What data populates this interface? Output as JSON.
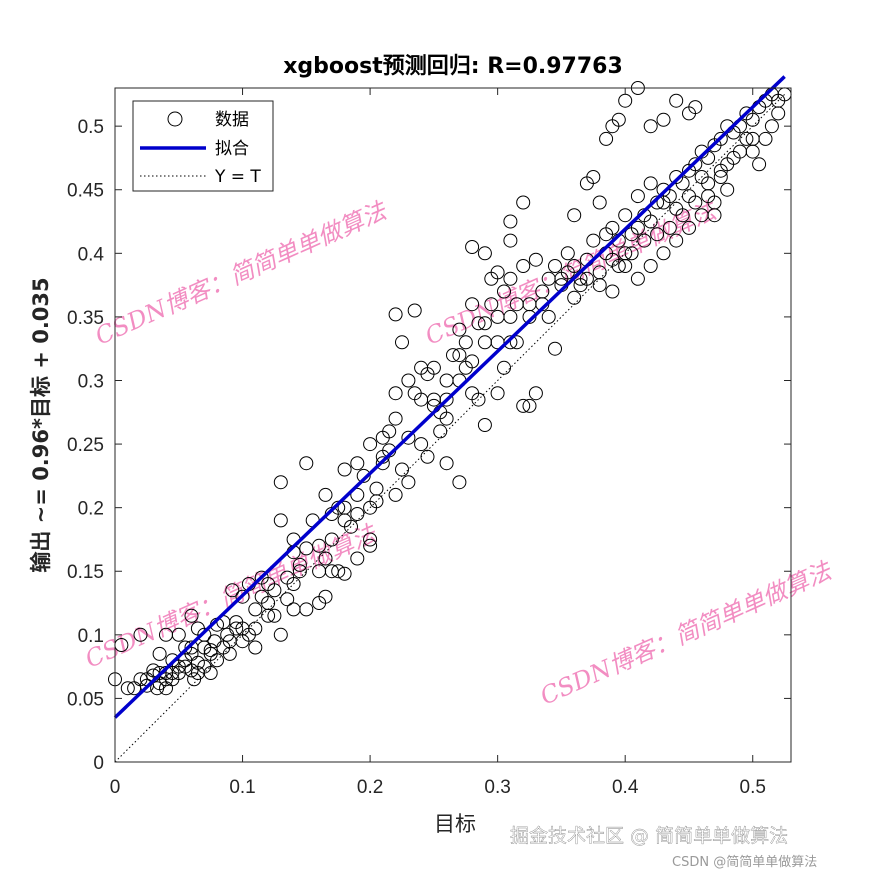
{
  "chart_data": {
    "type": "scatter",
    "title": "xgboost预测回归: R=0.97763",
    "xlabel": "目标",
    "ylabel": "输出 ~= 0.96*目标 + 0.035",
    "xlim": [
      0,
      0.53
    ],
    "ylim": [
      0,
      0.53
    ],
    "xticks": [
      "0",
      "0.1",
      "0.2",
      "0.3",
      "0.4",
      "0.5"
    ],
    "yticks": [
      "0",
      "0.05",
      "0.1",
      "0.15",
      "0.2",
      "0.25",
      "0.3",
      "0.35",
      "0.4",
      "0.45",
      "0.5"
    ],
    "grid": false,
    "legend": {
      "placement": "top-left",
      "entries": [
        {
          "label": "数据",
          "marker": "circle",
          "color": "#000000"
        },
        {
          "label": "拟合",
          "marker": "line",
          "color": "#0000cc"
        },
        {
          "label": "Y = T",
          "marker": "dotted",
          "color": "#000000"
        }
      ]
    },
    "fit": {
      "slope": 0.96,
      "intercept": 0.035,
      "color": "#0000cc"
    },
    "identity_line": {
      "style": "dotted",
      "color": "#000000"
    },
    "series": [
      {
        "label": "数据",
        "points": [
          [
            0.005,
            0.092
          ],
          [
            0.0,
            0.065
          ],
          [
            0.01,
            0.058
          ],
          [
            0.02,
            0.065
          ],
          [
            0.025,
            0.06
          ],
          [
            0.03,
            0.068
          ],
          [
            0.033,
            0.058
          ],
          [
            0.035,
            0.062
          ],
          [
            0.04,
            0.07
          ],
          [
            0.04,
            0.058
          ],
          [
            0.045,
            0.065
          ],
          [
            0.05,
            0.07
          ],
          [
            0.05,
            0.075
          ],
          [
            0.055,
            0.08
          ],
          [
            0.06,
            0.072
          ],
          [
            0.06,
            0.085
          ],
          [
            0.062,
            0.065
          ],
          [
            0.065,
            0.078
          ],
          [
            0.07,
            0.09
          ],
          [
            0.07,
            0.1
          ],
          [
            0.075,
            0.085
          ],
          [
            0.078,
            0.095
          ],
          [
            0.08,
            0.108
          ],
          [
            0.085,
            0.09
          ],
          [
            0.088,
            0.1
          ],
          [
            0.09,
            0.085
          ],
          [
            0.092,
            0.135
          ],
          [
            0.095,
            0.11
          ],
          [
            0.1,
            0.105
          ],
          [
            0.1,
            0.13
          ],
          [
            0.105,
            0.14
          ],
          [
            0.11,
            0.12
          ],
          [
            0.115,
            0.145
          ],
          [
            0.12,
            0.14
          ],
          [
            0.125,
            0.115
          ],
          [
            0.13,
            0.1
          ],
          [
            0.135,
            0.128
          ],
          [
            0.14,
            0.12
          ],
          [
            0.14,
            0.175
          ],
          [
            0.145,
            0.15
          ],
          [
            0.15,
            0.168
          ],
          [
            0.155,
            0.19
          ],
          [
            0.16,
            0.15
          ],
          [
            0.165,
            0.13
          ],
          [
            0.17,
            0.175
          ],
          [
            0.175,
            0.2
          ],
          [
            0.18,
            0.148
          ],
          [
            0.185,
            0.185
          ],
          [
            0.19,
            0.21
          ],
          [
            0.195,
            0.225
          ],
          [
            0.2,
            0.2
          ],
          [
            0.2,
            0.17
          ],
          [
            0.205,
            0.215
          ],
          [
            0.21,
            0.235
          ],
          [
            0.215,
            0.245
          ],
          [
            0.22,
            0.27
          ],
          [
            0.225,
            0.23
          ],
          [
            0.23,
            0.255
          ],
          [
            0.235,
            0.29
          ],
          [
            0.24,
            0.285
          ],
          [
            0.245,
            0.305
          ],
          [
            0.25,
            0.31
          ],
          [
            0.255,
            0.275
          ],
          [
            0.26,
            0.3
          ],
          [
            0.265,
            0.32
          ],
          [
            0.27,
            0.34
          ],
          [
            0.275,
            0.31
          ],
          [
            0.28,
            0.36
          ],
          [
            0.285,
            0.345
          ],
          [
            0.29,
            0.33
          ],
          [
            0.295,
            0.36
          ],
          [
            0.3,
            0.35
          ],
          [
            0.305,
            0.37
          ],
          [
            0.31,
            0.38
          ],
          [
            0.315,
            0.33
          ],
          [
            0.32,
            0.39
          ],
          [
            0.325,
            0.35
          ],
          [
            0.33,
            0.395
          ],
          [
            0.335,
            0.36
          ],
          [
            0.34,
            0.38
          ],
          [
            0.345,
            0.39
          ],
          [
            0.35,
            0.375
          ],
          [
            0.355,
            0.385
          ],
          [
            0.36,
            0.39
          ],
          [
            0.365,
            0.375
          ],
          [
            0.37,
            0.395
          ],
          [
            0.375,
            0.41
          ],
          [
            0.38,
            0.385
          ],
          [
            0.385,
            0.4
          ],
          [
            0.39,
            0.395
          ],
          [
            0.395,
            0.41
          ],
          [
            0.4,
            0.4
          ],
          [
            0.405,
            0.415
          ],
          [
            0.41,
            0.42
          ],
          [
            0.415,
            0.43
          ],
          [
            0.42,
            0.425
          ],
          [
            0.425,
            0.44
          ],
          [
            0.43,
            0.45
          ],
          [
            0.435,
            0.445
          ],
          [
            0.44,
            0.46
          ],
          [
            0.445,
            0.455
          ],
          [
            0.45,
            0.465
          ],
          [
            0.455,
            0.47
          ],
          [
            0.46,
            0.48
          ],
          [
            0.465,
            0.475
          ],
          [
            0.47,
            0.485
          ],
          [
            0.475,
            0.49
          ],
          [
            0.48,
            0.5
          ],
          [
            0.485,
            0.495
          ],
          [
            0.49,
            0.5
          ],
          [
            0.495,
            0.51
          ],
          [
            0.5,
            0.505
          ],
          [
            0.505,
            0.515
          ],
          [
            0.51,
            0.52
          ],
          [
            0.515,
            0.525
          ],
          [
            0.52,
            0.52
          ],
          [
            0.525,
            0.525
          ],
          [
            0.22,
            0.352
          ],
          [
            0.235,
            0.355
          ],
          [
            0.225,
            0.33
          ],
          [
            0.28,
            0.405
          ],
          [
            0.29,
            0.4
          ],
          [
            0.31,
            0.425
          ],
          [
            0.32,
            0.44
          ],
          [
            0.31,
            0.41
          ],
          [
            0.295,
            0.38
          ],
          [
            0.3,
            0.385
          ],
          [
            0.33,
            0.29
          ],
          [
            0.32,
            0.28
          ],
          [
            0.325,
            0.28
          ],
          [
            0.345,
            0.325
          ],
          [
            0.27,
            0.22
          ],
          [
            0.26,
            0.235
          ],
          [
            0.28,
            0.29
          ],
          [
            0.29,
            0.265
          ],
          [
            0.24,
            0.25
          ],
          [
            0.255,
            0.26
          ],
          [
            0.21,
            0.24
          ],
          [
            0.215,
            0.26
          ],
          [
            0.2,
            0.175
          ],
          [
            0.19,
            0.16
          ],
          [
            0.175,
            0.15
          ],
          [
            0.13,
            0.22
          ],
          [
            0.13,
            0.19
          ],
          [
            0.15,
            0.235
          ],
          [
            0.165,
            0.21
          ],
          [
            0.17,
            0.195
          ],
          [
            0.18,
            0.2
          ],
          [
            0.06,
            0.115
          ],
          [
            0.05,
            0.1
          ],
          [
            0.065,
            0.105
          ],
          [
            0.02,
            0.1
          ],
          [
            0.035,
            0.085
          ],
          [
            0.03,
            0.072
          ],
          [
            0.04,
            0.1
          ],
          [
            0.045,
            0.08
          ],
          [
            0.055,
            0.09
          ],
          [
            0.07,
            0.075
          ],
          [
            0.075,
            0.07
          ],
          [
            0.085,
            0.11
          ],
          [
            0.095,
            0.105
          ],
          [
            0.105,
            0.1
          ],
          [
            0.11,
            0.09
          ],
          [
            0.115,
            0.13
          ],
          [
            0.12,
            0.125
          ],
          [
            0.125,
            0.135
          ],
          [
            0.14,
            0.14
          ],
          [
            0.15,
            0.12
          ],
          [
            0.16,
            0.125
          ],
          [
            0.17,
            0.15
          ],
          [
            0.18,
            0.19
          ],
          [
            0.19,
            0.195
          ],
          [
            0.205,
            0.205
          ],
          [
            0.22,
            0.21
          ],
          [
            0.23,
            0.22
          ],
          [
            0.245,
            0.24
          ],
          [
            0.25,
            0.285
          ],
          [
            0.26,
            0.285
          ],
          [
            0.27,
            0.32
          ],
          [
            0.275,
            0.33
          ],
          [
            0.285,
            0.285
          ],
          [
            0.3,
            0.29
          ],
          [
            0.305,
            0.31
          ],
          [
            0.31,
            0.33
          ],
          [
            0.315,
            0.36
          ],
          [
            0.325,
            0.36
          ],
          [
            0.335,
            0.37
          ],
          [
            0.34,
            0.35
          ],
          [
            0.35,
            0.38
          ],
          [
            0.355,
            0.4
          ],
          [
            0.36,
            0.43
          ],
          [
            0.365,
            0.38
          ],
          [
            0.37,
            0.455
          ],
          [
            0.375,
            0.46
          ],
          [
            0.38,
            0.44
          ],
          [
            0.385,
            0.49
          ],
          [
            0.39,
            0.5
          ],
          [
            0.395,
            0.505
          ],
          [
            0.4,
            0.52
          ],
          [
            0.41,
            0.53
          ],
          [
            0.42,
            0.5
          ],
          [
            0.43,
            0.505
          ],
          [
            0.44,
            0.52
          ],
          [
            0.45,
            0.51
          ],
          [
            0.455,
            0.515
          ],
          [
            0.46,
            0.46
          ],
          [
            0.465,
            0.445
          ],
          [
            0.47,
            0.43
          ],
          [
            0.475,
            0.46
          ],
          [
            0.48,
            0.47
          ],
          [
            0.49,
            0.48
          ],
          [
            0.495,
            0.49
          ],
          [
            0.5,
            0.48
          ],
          [
            0.505,
            0.47
          ],
          [
            0.51,
            0.49
          ],
          [
            0.515,
            0.5
          ],
          [
            0.52,
            0.51
          ],
          [
            0.4,
            0.39
          ],
          [
            0.41,
            0.38
          ],
          [
            0.42,
            0.39
          ],
          [
            0.43,
            0.4
          ],
          [
            0.44,
            0.41
          ],
          [
            0.45,
            0.42
          ],
          [
            0.46,
            0.43
          ],
          [
            0.47,
            0.44
          ],
          [
            0.48,
            0.45
          ],
          [
            0.39,
            0.37
          ],
          [
            0.38,
            0.375
          ],
          [
            0.37,
            0.38
          ],
          [
            0.36,
            0.365
          ],
          [
            0.4,
            0.43
          ],
          [
            0.41,
            0.445
          ],
          [
            0.42,
            0.455
          ],
          [
            0.43,
            0.44
          ],
          [
            0.44,
            0.435
          ],
          [
            0.45,
            0.445
          ],
          [
            0.39,
            0.42
          ],
          [
            0.385,
            0.415
          ],
          [
            0.395,
            0.39
          ],
          [
            0.405,
            0.4
          ],
          [
            0.415,
            0.41
          ],
          [
            0.425,
            0.415
          ],
          [
            0.435,
            0.42
          ],
          [
            0.445,
            0.43
          ],
          [
            0.455,
            0.44
          ],
          [
            0.465,
            0.455
          ],
          [
            0.475,
            0.465
          ],
          [
            0.485,
            0.475
          ],
          [
            0.5,
            0.49
          ],
          [
            0.22,
            0.29
          ],
          [
            0.23,
            0.3
          ],
          [
            0.24,
            0.31
          ],
          [
            0.25,
            0.28
          ],
          [
            0.26,
            0.27
          ],
          [
            0.27,
            0.3
          ],
          [
            0.28,
            0.315
          ],
          [
            0.29,
            0.345
          ],
          [
            0.3,
            0.33
          ],
          [
            0.31,
            0.35
          ],
          [
            0.18,
            0.23
          ],
          [
            0.19,
            0.235
          ],
          [
            0.2,
            0.25
          ],
          [
            0.21,
            0.255
          ],
          [
            0.16,
            0.17
          ],
          [
            0.165,
            0.16
          ],
          [
            0.14,
            0.165
          ],
          [
            0.145,
            0.155
          ],
          [
            0.135,
            0.145
          ],
          [
            0.12,
            0.115
          ],
          [
            0.11,
            0.105
          ],
          [
            0.1,
            0.095
          ],
          [
            0.09,
            0.095
          ],
          [
            0.08,
            0.08
          ],
          [
            0.075,
            0.088
          ],
          [
            0.065,
            0.07
          ],
          [
            0.06,
            0.09
          ],
          [
            0.055,
            0.075
          ],
          [
            0.045,
            0.07
          ],
          [
            0.04,
            0.065
          ],
          [
            0.035,
            0.07
          ],
          [
            0.025,
            0.065
          ],
          [
            0.015,
            0.058
          ]
        ]
      }
    ]
  },
  "watermarks": [
    {
      "text": "CSDN博客：简简单单做算法"
    },
    {
      "text": "CSDN博客：简简单单做算法"
    },
    {
      "text": "CSDN博客：简简单单做算法"
    },
    {
      "text": "CSDN博客：简简单单做算法"
    }
  ],
  "footer": {
    "main": "掘金技术社区 @ 简简单单做算法",
    "small": "CSDN @简简单单做算法"
  }
}
